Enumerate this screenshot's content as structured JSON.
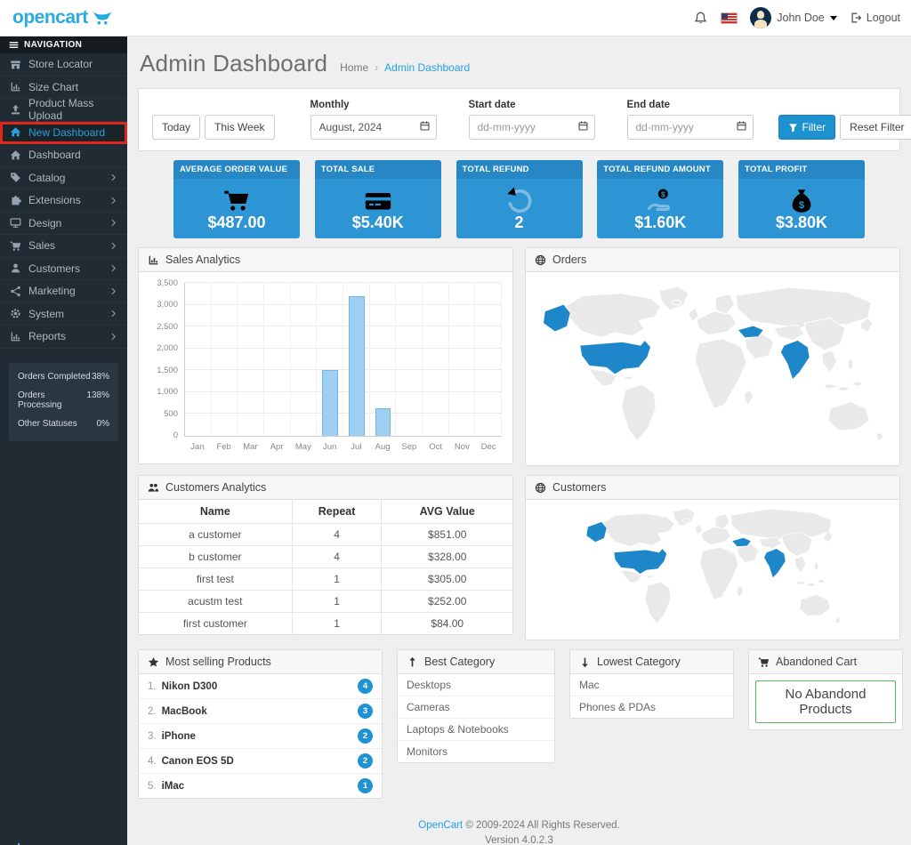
{
  "header": {
    "logo_text": "opencart",
    "user_name": "John Doe",
    "logout_label": "Logout"
  },
  "sidebar": {
    "nav_header": "NAVIGATION",
    "items": [
      {
        "label": "Store Locator",
        "icon": "store-icon",
        "has_children": false,
        "active": false
      },
      {
        "label": "Size Chart",
        "icon": "chart-icon",
        "has_children": false,
        "active": false
      },
      {
        "label": "Product Mass Upload",
        "icon": "upload-icon",
        "has_children": false,
        "active": false
      },
      {
        "label": "New Dashboard",
        "icon": "home-icon",
        "has_children": false,
        "active": true
      },
      {
        "label": "Dashboard",
        "icon": "home-icon",
        "has_children": false,
        "active": false
      },
      {
        "label": "Catalog",
        "icon": "tag-icon",
        "has_children": true,
        "active": false
      },
      {
        "label": "Extensions",
        "icon": "puzzle-icon",
        "has_children": true,
        "active": false
      },
      {
        "label": "Design",
        "icon": "monitor-icon",
        "has_children": true,
        "active": false
      },
      {
        "label": "Sales",
        "icon": "cart-icon",
        "has_children": true,
        "active": false
      },
      {
        "label": "Customers",
        "icon": "user-icon",
        "has_children": true,
        "active": false
      },
      {
        "label": "Marketing",
        "icon": "share-icon",
        "has_children": true,
        "active": false
      },
      {
        "label": "System",
        "icon": "gear-icon",
        "has_children": true,
        "active": false
      },
      {
        "label": "Reports",
        "icon": "chart-icon",
        "has_children": true,
        "active": false
      }
    ],
    "stats": [
      {
        "label": "Orders Completed",
        "value": "38%"
      },
      {
        "label": "Orders Processing",
        "value": "138%"
      },
      {
        "label": "Other Statuses",
        "value": "0%"
      }
    ]
  },
  "page": {
    "title": "Admin Dashboard",
    "breadcrumb_home": "Home",
    "breadcrumb_separator": "›",
    "breadcrumb_current": "Admin Dashboard"
  },
  "filter": {
    "today": "Today",
    "this_week": "This Week",
    "monthly_label": "Monthly",
    "monthly_value": "August, 2024",
    "start_label": "Start date",
    "start_placeholder": "dd-mm-yyyy",
    "end_label": "End date",
    "end_placeholder": "dd-mm-yyyy",
    "filter_button": "Filter",
    "reset_button": "Reset Filter"
  },
  "tiles": [
    {
      "label": "AVERAGE ORDER VALUE",
      "value": "$487.00",
      "icon": "cart-icon"
    },
    {
      "label": "TOTAL SALE",
      "value": "$5.40K",
      "icon": "credit-card-icon"
    },
    {
      "label": "TOTAL REFUND",
      "value": "2",
      "icon": "rotate-ccw-icon"
    },
    {
      "label": "TOTAL REFUND AMOUNT",
      "value": "$1.60K",
      "icon": "hand-dollar-icon"
    },
    {
      "label": "TOTAL PROFIT",
      "value": "$3.80K",
      "icon": "money-bag-icon"
    }
  ],
  "panels": {
    "sales": {
      "title": "Sales Analytics"
    },
    "orders": {
      "title": "Orders",
      "highlighted_countries": [
        "United States",
        "Turkey",
        "India"
      ]
    },
    "customers_analytics": {
      "title": "Customers Analytics",
      "columns": [
        "Name",
        "Repeat",
        "AVG Value"
      ],
      "rows": [
        {
          "name": "a customer",
          "repeat": "4",
          "avg": "$851.00"
        },
        {
          "name": "b customer",
          "repeat": "4",
          "avg": "$328.00"
        },
        {
          "name": "first test",
          "repeat": "1",
          "avg": "$305.00"
        },
        {
          "name": "acustm test",
          "repeat": "1",
          "avg": "$252.00"
        },
        {
          "name": "first customer",
          "repeat": "1",
          "avg": "$84.00"
        }
      ]
    },
    "customers_map": {
      "title": "Customers",
      "highlighted_countries": [
        "United States",
        "Turkey",
        "India"
      ]
    },
    "most_selling": {
      "title": "Most selling Products",
      "items": [
        {
          "rank": "1.",
          "name": "Nikon D300",
          "count": "4"
        },
        {
          "rank": "2.",
          "name": "MacBook",
          "count": "3"
        },
        {
          "rank": "3.",
          "name": "iPhone",
          "count": "2"
        },
        {
          "rank": "4.",
          "name": "Canon EOS 5D",
          "count": "2"
        },
        {
          "rank": "5.",
          "name": "iMac",
          "count": "1"
        }
      ]
    },
    "best_category": {
      "title": "Best Category",
      "items": [
        "Desktops",
        "Cameras",
        "Laptops & Notebooks",
        "Monitors"
      ]
    },
    "lowest_category": {
      "title": "Lowest Category",
      "items": [
        "Mac",
        "Phones & PDAs"
      ]
    },
    "abandoned": {
      "title": "Abandoned Cart",
      "message": "No Abandond Products"
    }
  },
  "chart_data": {
    "type": "bar",
    "title": "Sales Analytics",
    "categories": [
      "Jan",
      "Feb",
      "Mar",
      "Apr",
      "May",
      "Jun",
      "Jul",
      "Aug",
      "Sep",
      "Oct",
      "Nov",
      "Dec"
    ],
    "values": [
      0,
      0,
      0,
      0,
      0,
      1500,
      3200,
      640,
      0,
      0,
      0,
      0
    ],
    "xlabel": "",
    "ylabel": "",
    "ylim": [
      0,
      3500
    ],
    "yticks": [
      0,
      500,
      1000,
      1500,
      2000,
      2500,
      3000,
      3500
    ],
    "ytick_labels": [
      "0",
      "500",
      "1,000",
      "1,500",
      "2,000",
      "2,500",
      "3,000",
      "3,500"
    ],
    "grid": true,
    "legend": false,
    "bar_color": "#9fd0f3",
    "bar_border": "#72b4e6"
  },
  "footer": {
    "link_text": "OpenCart",
    "rights": "© 2009-2024 All Rights Reserved.",
    "version": "Version 4.0.2.3"
  },
  "colors": {
    "accent": "#1e91cf",
    "logo_blue": "#29abe2",
    "tile_body": "#2e95d4",
    "tile_header": "#2787c5",
    "sidebar_bg": "#202b33",
    "active_highlight_red": "#e0261c",
    "map_highlight": "#1d87c9",
    "abandoned_border_green": "#5cb85c"
  }
}
